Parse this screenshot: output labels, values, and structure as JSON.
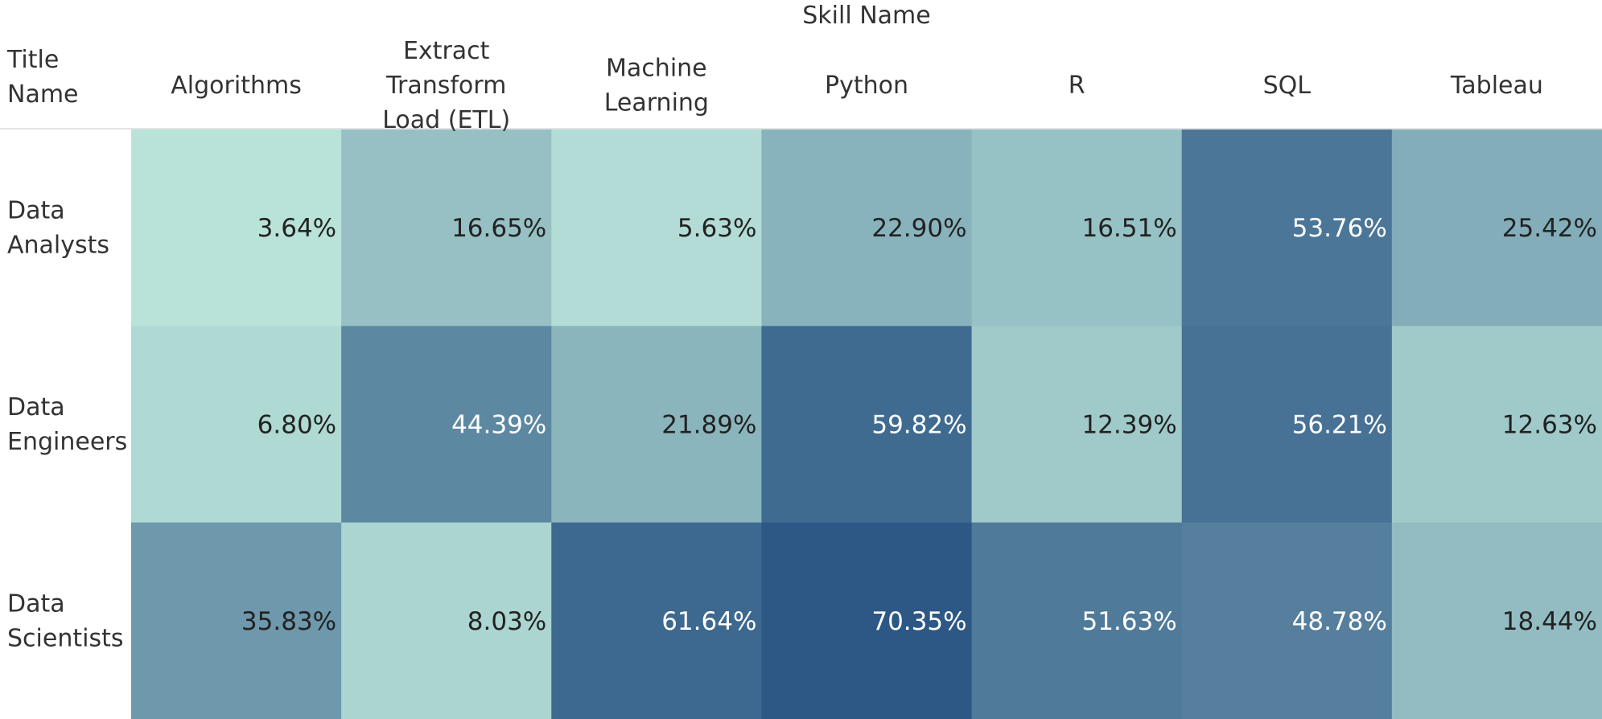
{
  "chart_data": {
    "type": "heatmap",
    "column_field_label": "Skill Name",
    "row_field_label": "Title Name",
    "columns": [
      "Algorithms",
      "Extract Transform Load (ETL)",
      "Machine Learning",
      "Python",
      "R",
      "SQL",
      "Tableau"
    ],
    "rows": [
      "Data Analysts",
      "Data Engineers",
      "Data Scientists"
    ],
    "values": [
      [
        3.64,
        16.65,
        5.63,
        22.9,
        16.51,
        53.76,
        25.42
      ],
      [
        6.8,
        44.39,
        21.89,
        59.82,
        12.39,
        56.21,
        12.63
      ],
      [
        35.83,
        8.03,
        61.64,
        70.35,
        51.63,
        48.78,
        18.44
      ]
    ],
    "value_labels": [
      [
        "3.64%",
        "16.65%",
        "5.63%",
        "22.90%",
        "16.51%",
        "53.76%",
        "25.42%"
      ],
      [
        "6.80%",
        "44.39%",
        "21.89%",
        "59.82%",
        "12.39%",
        "56.21%",
        "12.63%"
      ],
      [
        "35.83%",
        "8.03%",
        "61.64%",
        "70.35%",
        "51.63%",
        "48.78%",
        "18.44%"
      ]
    ],
    "color_scale": {
      "low": "#b9e3d9",
      "high": "#2d5886",
      "domain": [
        3.64,
        70.35
      ]
    },
    "dark_text_color": "#222222",
    "light_text_color": "#ffffff"
  }
}
